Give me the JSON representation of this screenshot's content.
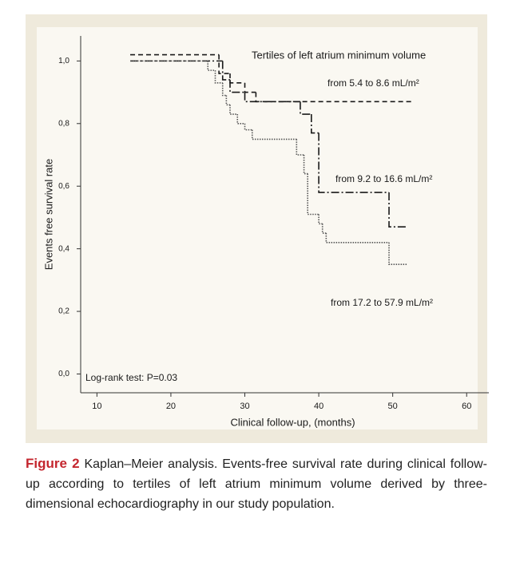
{
  "chart_data": {
    "type": "step",
    "xlabel": "Clinical follow-up, (months)",
    "ylabel": "Events free survival rate",
    "legend_title": "Tertiles of left atrium minimum volume",
    "annotation": "Log-rank test: P=0.03",
    "xlim": [
      7.8,
      63
    ],
    "ylim": [
      -0.06,
      1.08
    ],
    "xticks": [
      10,
      20,
      30,
      40,
      50,
      60
    ],
    "yticks": [
      {
        "value": 0,
        "label": "0,0"
      },
      {
        "value": 0.2,
        "label": "0,2"
      },
      {
        "value": 0.4,
        "label": "0,4"
      },
      {
        "value": 0.6,
        "label": "0,6"
      },
      {
        "value": 0.8,
        "label": "0,8"
      },
      {
        "value": 1,
        "label": "1,0"
      }
    ],
    "series": [
      {
        "name": "from 5.4 to 8.6 mL/m²",
        "color": "#1a1a1a",
        "line_style": "dashed",
        "x": [
          14.5,
          26.5,
          28,
          30,
          31.5,
          52.5
        ],
        "values": [
          1.02,
          0.96,
          0.93,
          0.9,
          0.87,
          0.87
        ]
      },
      {
        "name": "from 9.2 to 16.6 mL/m²",
        "color": "#1a1a1a",
        "line_style": "dashdot",
        "x": [
          14.5,
          27,
          28,
          30,
          37.5,
          39,
          40,
          49.5,
          52
        ],
        "values": [
          1,
          0.94,
          0.9,
          0.87,
          0.83,
          0.77,
          0.58,
          0.47,
          0.47
        ]
      },
      {
        "name": "from 17.2 to 57.9 mL/m²",
        "color": "#555555",
        "line_style": "dotted",
        "x": [
          14.5,
          25,
          26,
          27,
          27.5,
          28,
          29,
          30,
          31,
          37,
          38,
          38.5,
          40,
          40.5,
          41,
          49.5,
          52
        ],
        "values": [
          1,
          0.97,
          0.93,
          0.89,
          0.86,
          0.83,
          0.8,
          0.78,
          0.75,
          0.7,
          0.64,
          0.51,
          0.48,
          0.45,
          0.42,
          0.35,
          0.35
        ]
      }
    ]
  },
  "caption": {
    "label": "Figure 2",
    "text": "Kaplan–Meier analysis. Events-free survival rate during clinical follow-up according to tertiles of left atrium minimum volume derived by three-dimensional echocardiography in our study population."
  }
}
